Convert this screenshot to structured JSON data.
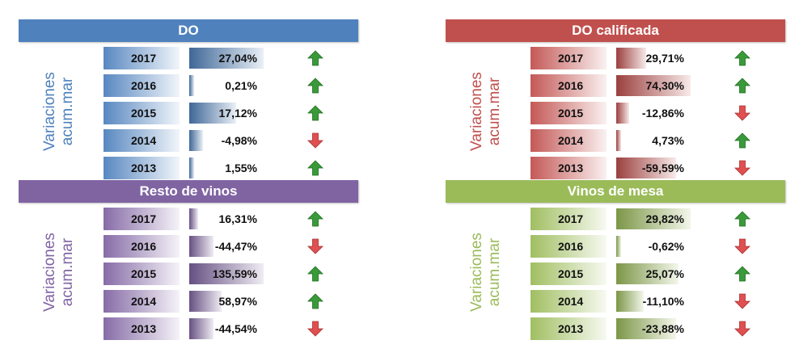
{
  "chart_data": [
    {
      "type": "table",
      "title": "DO",
      "side_label": [
        "Variaciones",
        "acum.mar"
      ],
      "color": "#4f81bd",
      "rows": [
        {
          "year": "2017",
          "value": 27.04,
          "label": "27,04%",
          "trend": "up"
        },
        {
          "year": "2016",
          "value": 0.21,
          "label": "0,21%",
          "trend": "up"
        },
        {
          "year": "2015",
          "value": 17.12,
          "label": "17,12%",
          "trend": "up"
        },
        {
          "year": "2014",
          "value": -4.98,
          "label": "-4,98%",
          "trend": "down"
        },
        {
          "year": "2013",
          "value": 1.55,
          "label": "1,55%",
          "trend": "up"
        }
      ]
    },
    {
      "type": "table",
      "title": "DO calificada",
      "side_label": [
        "Variaciones",
        "acum.mar"
      ],
      "color": "#c0504d",
      "rows": [
        {
          "year": "2017",
          "value": 29.71,
          "label": "29,71%",
          "trend": "up"
        },
        {
          "year": "2016",
          "value": 74.3,
          "label": "74,30%",
          "trend": "up"
        },
        {
          "year": "2015",
          "value": -12.86,
          "label": "-12,86%",
          "trend": "down"
        },
        {
          "year": "2014",
          "value": 4.73,
          "label": "4,73%",
          "trend": "up"
        },
        {
          "year": "2013",
          "value": -59.59,
          "label": "-59,59%",
          "trend": "down"
        }
      ]
    },
    {
      "type": "table",
      "title": "Resto de vinos",
      "side_label": [
        "Variaciones",
        "acum.mar"
      ],
      "color": "#8064a2",
      "rows": [
        {
          "year": "2017",
          "value": 16.31,
          "label": "16,31%",
          "trend": "up"
        },
        {
          "year": "2016",
          "value": -44.47,
          "label": "-44,47%",
          "trend": "down"
        },
        {
          "year": "2015",
          "value": 135.59,
          "label": "135,59%",
          "trend": "up"
        },
        {
          "year": "2014",
          "value": 58.97,
          "label": "58,97%",
          "trend": "up"
        },
        {
          "year": "2013",
          "value": -44.54,
          "label": "-44,54%",
          "trend": "down"
        }
      ]
    },
    {
      "type": "table",
      "title": "Vinos de mesa",
      "side_label": [
        "Variaciones",
        "acum.mar"
      ],
      "color": "#9bbb59",
      "rows": [
        {
          "year": "2017",
          "value": 29.82,
          "label": "29,82%",
          "trend": "up"
        },
        {
          "year": "2016",
          "value": -0.62,
          "label": "-0,62%",
          "trend": "down"
        },
        {
          "year": "2015",
          "value": 25.07,
          "label": "25,07%",
          "trend": "up"
        },
        {
          "year": "2014",
          "value": -11.1,
          "label": "-11,10%",
          "trend": "down"
        },
        {
          "year": "2013",
          "value": -23.88,
          "label": "-23,88%",
          "trend": "down"
        }
      ]
    }
  ],
  "colors": {
    "DO": "#4f81bd",
    "DO calificada": "#c0504d",
    "Resto de vinos": "#8064a2",
    "Vinos de mesa": "#9bbb59",
    "arrow_up": "#3a9a3a",
    "arrow_down": "#e05050"
  },
  "icons": {
    "up": "green-up-arrow-icon",
    "down": "red-down-arrow-icon"
  }
}
